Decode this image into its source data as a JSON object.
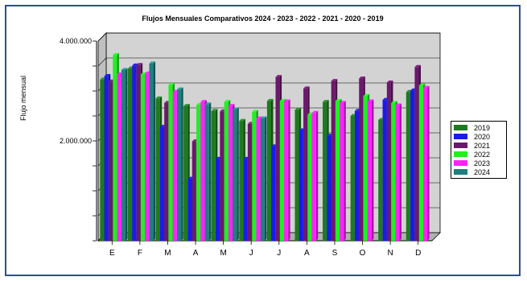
{
  "chart_data": {
    "type": "bar",
    "title": "Flujos Mensuales Comparativos 2024 - 2023 - 2022 - 2021 - 2020 - 2019",
    "ylabel": "Flujo mensual",
    "xlabel": "",
    "ylim": [
      0,
      4000000
    ],
    "yticks": [
      0,
      2000000,
      4000000
    ],
    "ytick_labels": [
      "",
      "2.000.000",
      "4.000.000"
    ],
    "grid": true,
    "legend_position": "right",
    "categories": [
      "E",
      "F",
      "M",
      "A",
      "M",
      "J",
      "J",
      "A",
      "S",
      "O",
      "N",
      "D"
    ],
    "series": [
      {
        "name": "2019",
        "color": "#1e7a1e",
        "values": [
          3230000,
          3450000,
          2850000,
          2700000,
          2600000,
          2400000,
          2800000,
          2620000,
          2780000,
          2500000,
          2420000,
          2980000
        ]
      },
      {
        "name": "2020",
        "color": "#1a1aee",
        "values": [
          3300000,
          3510000,
          2280000,
          1240000,
          1640000,
          1640000,
          1890000,
          2210000,
          2100000,
          2600000,
          2820000,
          3010000
        ]
      },
      {
        "name": "2021",
        "color": "#6a1a6a",
        "values": [
          3190000,
          3520000,
          2760000,
          1990000,
          2590000,
          2340000,
          3280000,
          3050000,
          3200000,
          3250000,
          3170000,
          3480000
        ]
      },
      {
        "name": "2022",
        "color": "#22ee22",
        "values": [
          3720000,
          3330000,
          3120000,
          2720000,
          2780000,
          2580000,
          2800000,
          2530000,
          2800000,
          2900000,
          2760000,
          3110000
        ]
      },
      {
        "name": "2023",
        "color": "#ff22ff",
        "values": [
          3330000,
          3350000,
          2980000,
          2780000,
          2700000,
          2450000,
          2790000,
          2560000,
          2760000,
          2790000,
          2710000,
          3060000
        ]
      },
      {
        "name": "2024",
        "color": "#1f7f7f",
        "values": [
          3420000,
          3550000,
          3030000,
          2730000,
          2630000,
          2450000,
          null,
          null,
          null,
          null,
          null,
          null
        ]
      }
    ]
  }
}
